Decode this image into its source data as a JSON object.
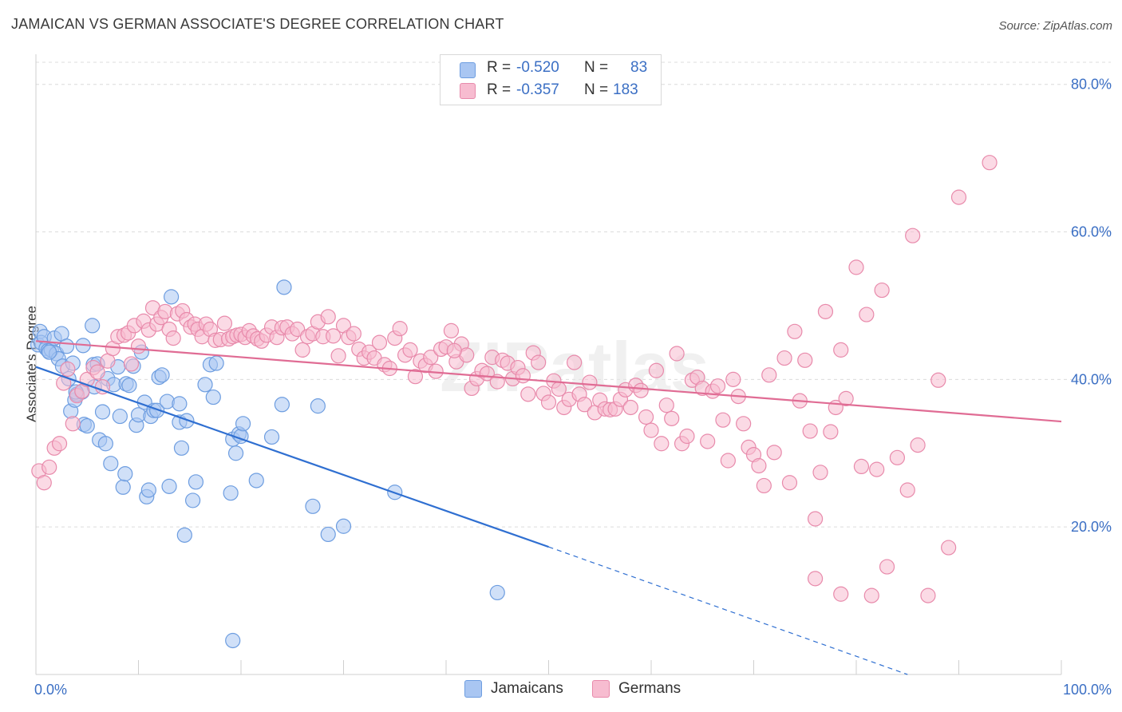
{
  "title": "JAMAICAN VS GERMAN ASSOCIATE'S DEGREE CORRELATION CHART",
  "source": "Source: ZipAtlas.com",
  "watermark": "ZIPatlas",
  "legend": {
    "rows": [
      {
        "r_label": "R =",
        "r_value": "-0.520",
        "n_label": "N =",
        "n_value": "83",
        "color": "#a9c6f2",
        "border": "#6d9de0"
      },
      {
        "r_label": "R =",
        "r_value": "-0.357",
        "n_label": "N =",
        "n_value": "183",
        "color": "#f7bcd0",
        "border": "#e88aab"
      }
    ]
  },
  "bottom_legend": [
    {
      "label": "Jamaicans",
      "color": "#a9c6f2",
      "border": "#6d9de0"
    },
    {
      "label": "Germans",
      "color": "#f7bcd0",
      "border": "#e88aab"
    }
  ],
  "chart_data": {
    "type": "scatter",
    "title": "JAMAICAN VS GERMAN ASSOCIATE'S DEGREE CORRELATION CHART",
    "xlabel": "",
    "ylabel": "Associate's Degree",
    "xlim": [
      0,
      100
    ],
    "ylim": [
      0,
      83
    ],
    "x_tick_labels": [
      "0.0%",
      "100.0%"
    ],
    "y_ticks": [
      20,
      40,
      60,
      80
    ],
    "y_tick_labels": [
      "20.0%",
      "40.0%",
      "60.0%",
      "80.0%"
    ],
    "grid": true,
    "legend_position": "top-center",
    "series": [
      {
        "name": "Jamaicans",
        "color": "#6d9de0",
        "fill": "#a9c6f2",
        "trend": {
          "x0": 0,
          "y0": 41.7,
          "x1": 50,
          "y1": 17.3,
          "dashed_to_x": 85,
          "dashed_to_y": 0
        },
        "points": [
          [
            0.2,
            44.7
          ],
          [
            0.4,
            46.5
          ],
          [
            0.5,
            45.0
          ],
          [
            0.8,
            45.8
          ],
          [
            1.0,
            44.2
          ],
          [
            1.2,
            43.9
          ],
          [
            1.5,
            44.0
          ],
          [
            1.8,
            45.6
          ],
          [
            2.0,
            43.5
          ],
          [
            2.2,
            42.8
          ],
          [
            2.5,
            46.2
          ],
          [
            2.6,
            41.8
          ],
          [
            3.0,
            44.5
          ],
          [
            3.2,
            40.1
          ],
          [
            3.4,
            35.7
          ],
          [
            3.6,
            42.2
          ],
          [
            3.8,
            37.2
          ],
          [
            4.0,
            38.0
          ],
          [
            4.5,
            38.3
          ],
          [
            4.6,
            44.6
          ],
          [
            4.7,
            33.9
          ],
          [
            5.0,
            33.7
          ],
          [
            5.5,
            47.3
          ],
          [
            5.6,
            42.0
          ],
          [
            5.7,
            39.0
          ],
          [
            6.2,
            31.8
          ],
          [
            6.5,
            35.6
          ],
          [
            6.8,
            31.3
          ],
          [
            7.0,
            40.1
          ],
          [
            7.3,
            28.6
          ],
          [
            7.6,
            39.3
          ],
          [
            8.0,
            41.7
          ],
          [
            8.2,
            35.0
          ],
          [
            8.5,
            25.4
          ],
          [
            8.7,
            27.2
          ],
          [
            8.8,
            39.4
          ],
          [
            9.1,
            39.2
          ],
          [
            9.5,
            41.8
          ],
          [
            9.8,
            33.8
          ],
          [
            10.0,
            35.2
          ],
          [
            10.3,
            43.7
          ],
          [
            10.6,
            36.9
          ],
          [
            10.8,
            24.1
          ],
          [
            11.0,
            25.0
          ],
          [
            11.2,
            35.0
          ],
          [
            11.5,
            35.8
          ],
          [
            11.8,
            35.8
          ],
          [
            12.0,
            40.3
          ],
          [
            12.3,
            40.6
          ],
          [
            12.8,
            37.0
          ],
          [
            13.0,
            25.5
          ],
          [
            13.2,
            51.2
          ],
          [
            14.0,
            34.2
          ],
          [
            14.2,
            30.7
          ],
          [
            14.5,
            18.9
          ],
          [
            14.7,
            34.4
          ],
          [
            15.3,
            23.6
          ],
          [
            15.6,
            26.1
          ],
          [
            16.5,
            39.3
          ],
          [
            17.0,
            42.0
          ],
          [
            17.3,
            37.6
          ],
          [
            17.6,
            42.2
          ],
          [
            19.0,
            24.6
          ],
          [
            19.2,
            31.9
          ],
          [
            19.5,
            30.0
          ],
          [
            19.8,
            32.6
          ],
          [
            20.0,
            32.3
          ],
          [
            20.2,
            34.0
          ],
          [
            21.5,
            26.3
          ],
          [
            23.0,
            32.2
          ],
          [
            24.0,
            36.6
          ],
          [
            24.2,
            52.5
          ],
          [
            27.0,
            22.8
          ],
          [
            27.5,
            36.4
          ],
          [
            28.5,
            19.0
          ],
          [
            30.0,
            20.1
          ],
          [
            35.0,
            24.7
          ],
          [
            45.0,
            11.1
          ],
          [
            19.2,
            4.6
          ],
          [
            1.3,
            43.7
          ],
          [
            3.9,
            38.3
          ],
          [
            6.0,
            42.1
          ],
          [
            14.0,
            36.7
          ]
        ]
      },
      {
        "name": "Germans",
        "color": "#e88aab",
        "fill": "#f7bcd0",
        "trend": {
          "x0": 0,
          "y0": 45.2,
          "x1": 100,
          "y1": 34.3
        },
        "points": [
          [
            0.3,
            27.6
          ],
          [
            0.8,
            26.0
          ],
          [
            1.3,
            28.1
          ],
          [
            1.8,
            30.7
          ],
          [
            2.3,
            31.3
          ],
          [
            2.7,
            39.5
          ],
          [
            3.1,
            41.4
          ],
          [
            3.6,
            34.0
          ],
          [
            4.0,
            37.8
          ],
          [
            4.5,
            38.4
          ],
          [
            5.0,
            40.0
          ],
          [
            5.6,
            41.6
          ],
          [
            6.0,
            41.0
          ],
          [
            6.5,
            39.0
          ],
          [
            7.0,
            42.5
          ],
          [
            7.5,
            44.2
          ],
          [
            8.0,
            45.8
          ],
          [
            8.6,
            46.0
          ],
          [
            9.0,
            46.3
          ],
          [
            9.3,
            42.1
          ],
          [
            9.6,
            47.3
          ],
          [
            10.0,
            44.5
          ],
          [
            10.5,
            47.9
          ],
          [
            11.0,
            46.7
          ],
          [
            11.4,
            49.7
          ],
          [
            11.8,
            47.5
          ],
          [
            12.2,
            48.4
          ],
          [
            12.6,
            49.2
          ],
          [
            13.0,
            46.8
          ],
          [
            13.4,
            45.6
          ],
          [
            13.8,
            48.9
          ],
          [
            14.3,
            49.3
          ],
          [
            14.7,
            48.1
          ],
          [
            15.1,
            47.1
          ],
          [
            15.5,
            47.5
          ],
          [
            15.8,
            46.8
          ],
          [
            16.2,
            45.8
          ],
          [
            16.6,
            47.5
          ],
          [
            17.0,
            46.8
          ],
          [
            17.5,
            45.3
          ],
          [
            18.0,
            45.4
          ],
          [
            18.4,
            47.6
          ],
          [
            18.8,
            45.5
          ],
          [
            19.2,
            45.8
          ],
          [
            19.6,
            46.0
          ],
          [
            20.0,
            46.1
          ],
          [
            20.4,
            45.7
          ],
          [
            20.8,
            46.6
          ],
          [
            21.2,
            45.9
          ],
          [
            21.6,
            45.5
          ],
          [
            22.0,
            45.2
          ],
          [
            22.5,
            46.0
          ],
          [
            23.0,
            47.1
          ],
          [
            23.5,
            45.7
          ],
          [
            24.0,
            47.0
          ],
          [
            24.5,
            47.1
          ],
          [
            25.0,
            46.2
          ],
          [
            25.5,
            46.8
          ],
          [
            26.0,
            44.0
          ],
          [
            26.5,
            45.8
          ],
          [
            27.0,
            46.2
          ],
          [
            27.5,
            47.8
          ],
          [
            28.0,
            45.8
          ],
          [
            28.5,
            48.5
          ],
          [
            29.0,
            45.9
          ],
          [
            29.5,
            43.2
          ],
          [
            30.0,
            47.3
          ],
          [
            30.5,
            45.7
          ],
          [
            31.0,
            46.2
          ],
          [
            31.5,
            44.1
          ],
          [
            32.0,
            42.9
          ],
          [
            32.5,
            43.7
          ],
          [
            33.0,
            42.9
          ],
          [
            33.5,
            45.0
          ],
          [
            34.0,
            42.0
          ],
          [
            34.5,
            41.5
          ],
          [
            35.0,
            45.6
          ],
          [
            35.5,
            46.9
          ],
          [
            36.0,
            43.3
          ],
          [
            36.5,
            44.0
          ],
          [
            37.0,
            40.4
          ],
          [
            37.5,
            42.5
          ],
          [
            38.0,
            41.9
          ],
          [
            38.5,
            43.0
          ],
          [
            39.0,
            41.1
          ],
          [
            39.5,
            44.1
          ],
          [
            40.0,
            44.4
          ],
          [
            40.5,
            46.6
          ],
          [
            41.0,
            42.4
          ],
          [
            41.5,
            44.8
          ],
          [
            42.0,
            43.3
          ],
          [
            42.5,
            38.8
          ],
          [
            43.0,
            40.1
          ],
          [
            43.5,
            41.2
          ],
          [
            44.0,
            40.8
          ],
          [
            44.5,
            43.0
          ],
          [
            45.0,
            39.7
          ],
          [
            45.5,
            42.6
          ],
          [
            46.0,
            42.2
          ],
          [
            46.5,
            40.1
          ],
          [
            47.0,
            41.6
          ],
          [
            47.5,
            40.5
          ],
          [
            48.0,
            38.0
          ],
          [
            48.5,
            43.6
          ],
          [
            49.0,
            42.3
          ],
          [
            49.5,
            38.1
          ],
          [
            50.0,
            36.9
          ],
          [
            50.5,
            39.8
          ],
          [
            51.0,
            38.7
          ],
          [
            51.5,
            36.2
          ],
          [
            52.0,
            37.3
          ],
          [
            52.5,
            42.3
          ],
          [
            53.0,
            38.0
          ],
          [
            53.5,
            36.6
          ],
          [
            54.0,
            39.6
          ],
          [
            54.5,
            35.5
          ],
          [
            55.0,
            37.2
          ],
          [
            55.5,
            36.0
          ],
          [
            56.0,
            35.9
          ],
          [
            56.5,
            36.0
          ],
          [
            57.0,
            37.3
          ],
          [
            57.5,
            38.6
          ],
          [
            58.0,
            36.2
          ],
          [
            58.5,
            39.2
          ],
          [
            59.0,
            38.5
          ],
          [
            59.5,
            34.9
          ],
          [
            60.0,
            33.1
          ],
          [
            60.5,
            41.2
          ],
          [
            61.0,
            31.3
          ],
          [
            61.5,
            36.5
          ],
          [
            62.0,
            34.7
          ],
          [
            62.5,
            43.5
          ],
          [
            63.0,
            31.3
          ],
          [
            63.5,
            32.3
          ],
          [
            64.0,
            39.9
          ],
          [
            64.5,
            40.3
          ],
          [
            65.0,
            38.8
          ],
          [
            65.5,
            31.6
          ],
          [
            66.0,
            38.4
          ],
          [
            66.5,
            39.1
          ],
          [
            67.0,
            34.5
          ],
          [
            67.5,
            29.0
          ],
          [
            68.0,
            40.0
          ],
          [
            68.5,
            37.7
          ],
          [
            69.0,
            34.0
          ],
          [
            69.5,
            30.8
          ],
          [
            70.0,
            29.8
          ],
          [
            70.5,
            28.3
          ],
          [
            71.0,
            25.6
          ],
          [
            71.5,
            40.6
          ],
          [
            72.0,
            30.1
          ],
          [
            73.0,
            42.9
          ],
          [
            73.5,
            26.0
          ],
          [
            74.0,
            46.5
          ],
          [
            74.5,
            37.1
          ],
          [
            75.0,
            42.6
          ],
          [
            75.5,
            33.0
          ],
          [
            76.0,
            21.1
          ],
          [
            76.5,
            27.4
          ],
          [
            77.0,
            49.2
          ],
          [
            77.5,
            32.9
          ],
          [
            78.0,
            36.2
          ],
          [
            78.5,
            44.0
          ],
          [
            79.0,
            37.4
          ],
          [
            80.0,
            55.2
          ],
          [
            80.5,
            28.2
          ],
          [
            81.0,
            48.8
          ],
          [
            82.0,
            27.8
          ],
          [
            82.5,
            52.1
          ],
          [
            83.0,
            14.6
          ],
          [
            84.0,
            29.4
          ],
          [
            85.0,
            25.0
          ],
          [
            85.5,
            59.5
          ],
          [
            86.0,
            31.1
          ],
          [
            87.0,
            10.7
          ],
          [
            88.0,
            39.9
          ],
          [
            89.0,
            17.2
          ],
          [
            90.0,
            64.7
          ],
          [
            93.0,
            69.4
          ],
          [
            76.0,
            13.0
          ],
          [
            78.5,
            10.9
          ],
          [
            81.5,
            10.7
          ],
          [
            40.8,
            43.9
          ]
        ]
      }
    ]
  }
}
